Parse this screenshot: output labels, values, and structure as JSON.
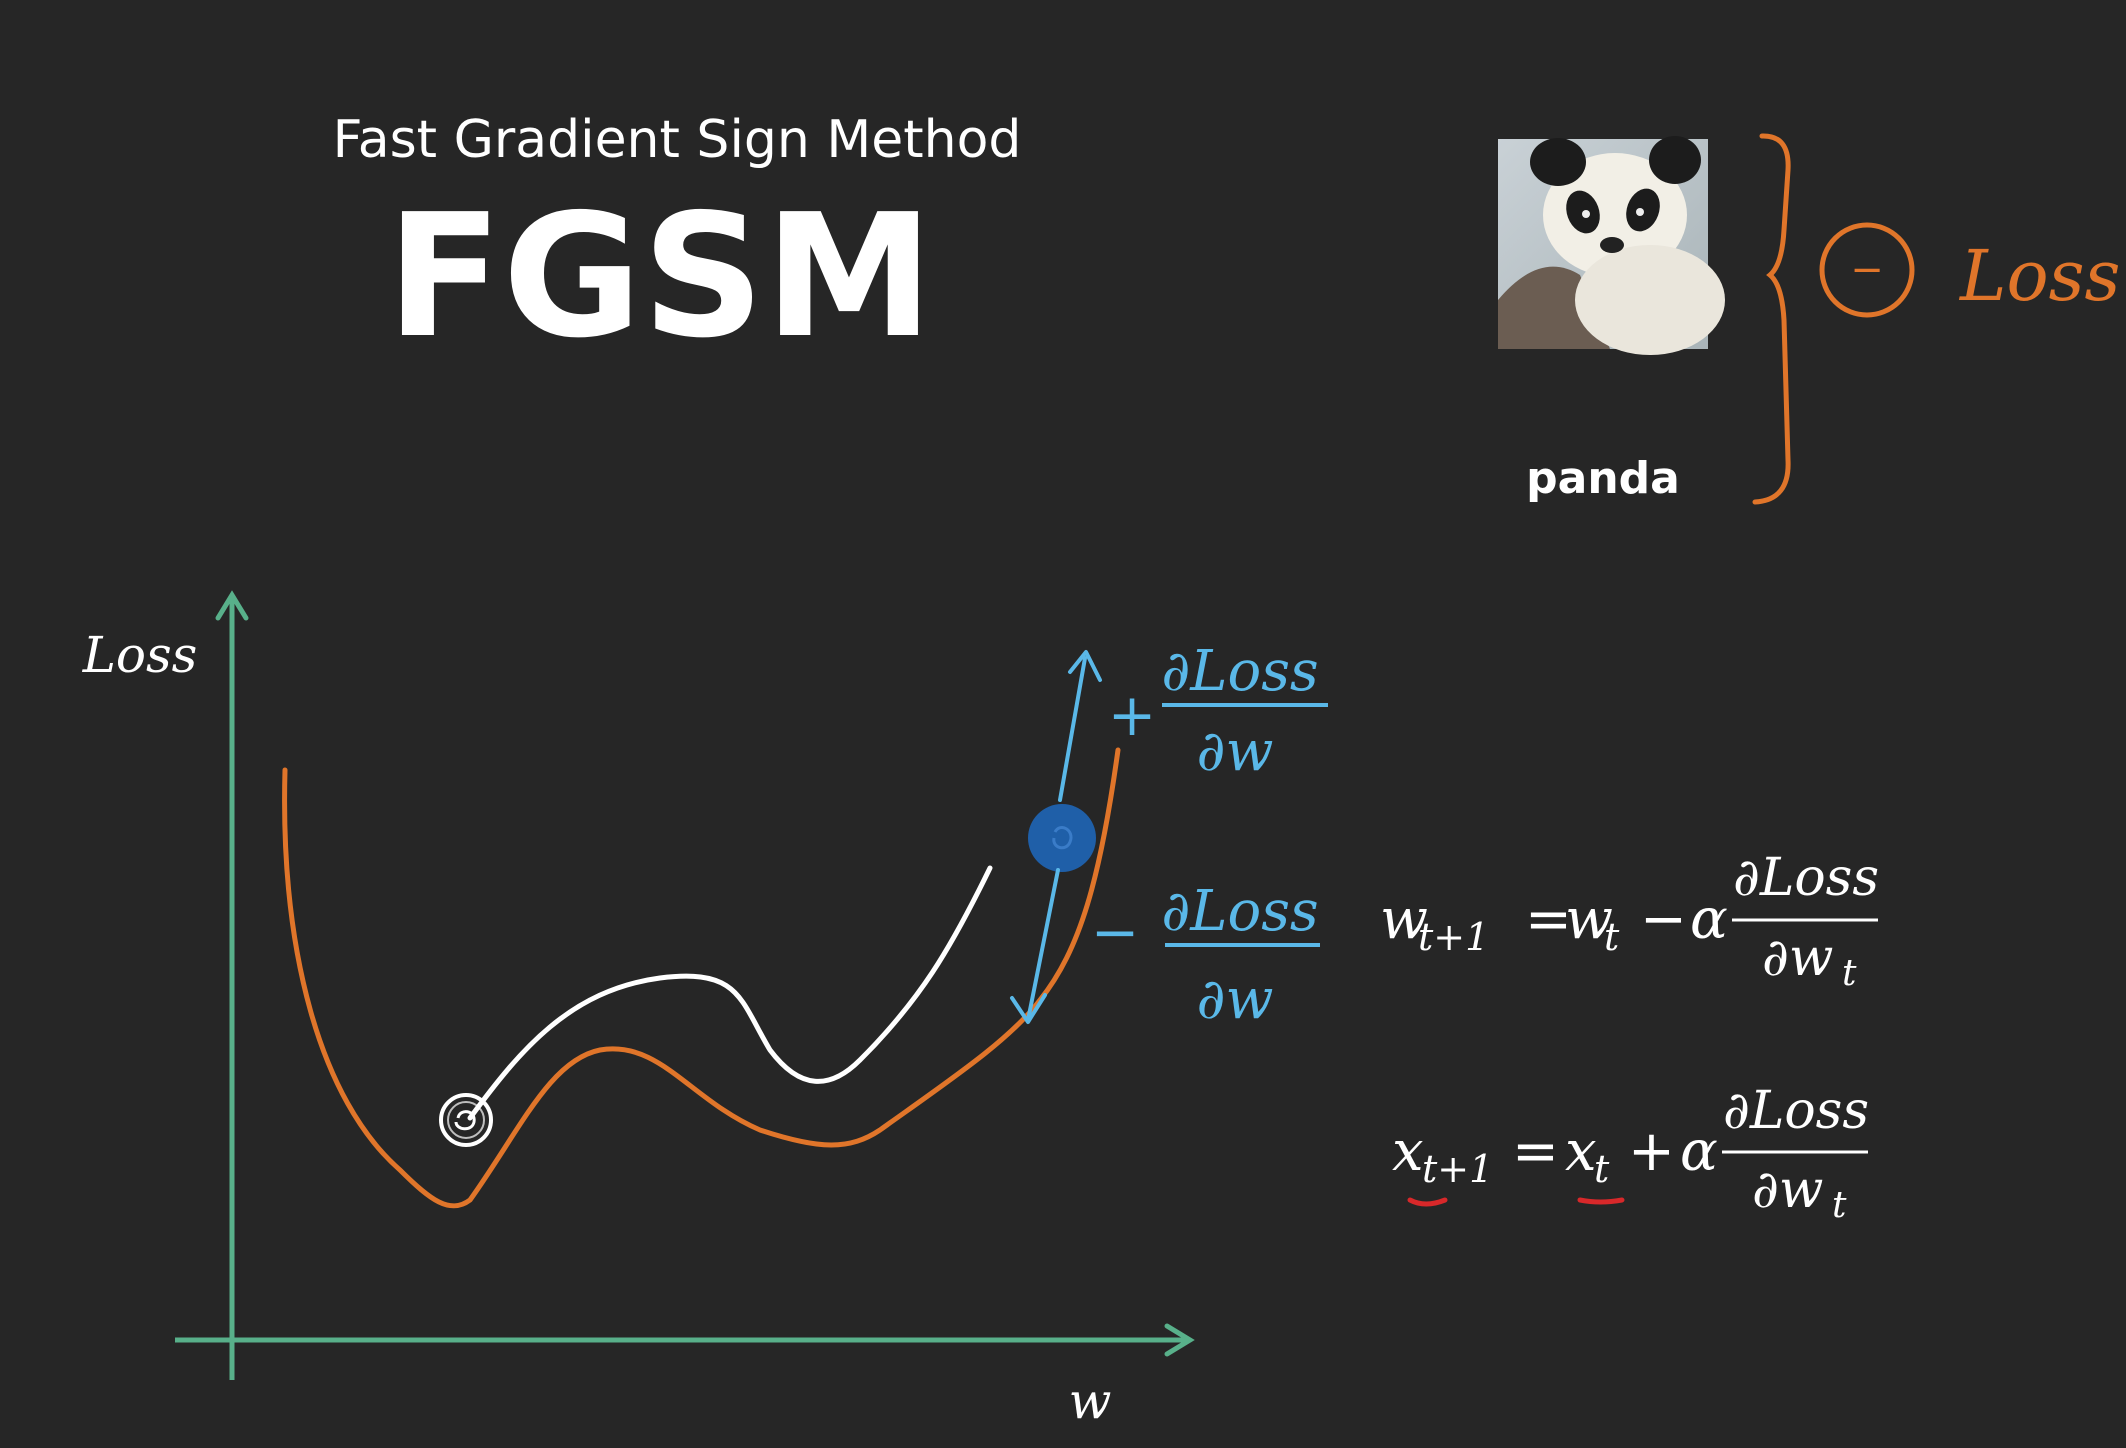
{
  "header": {
    "subtitle": "Fast Gradient Sign Method",
    "title": "FGSM"
  },
  "panda_panel": {
    "image_label": "panda",
    "minus_symbol": "−",
    "loss_annotation": "Loss"
  },
  "graph": {
    "y_axis_label": "Loss",
    "x_axis_label": "w",
    "plus_gradient": {
      "sign": "+",
      "numerator": "∂Loss",
      "denominator": "∂w"
    },
    "minus_gradient": {
      "sign": "−",
      "numerator": "∂Loss",
      "denominator": "∂w"
    }
  },
  "equations": {
    "weight_update": {
      "lhs": "w",
      "lhs_sub": "t+1",
      "eq": "=",
      "rhs_var": "w",
      "rhs_sub": "t",
      "op": "−",
      "alpha": "α",
      "numerator": "∂Loss",
      "denominator": "∂w",
      "denominator_sub": "t"
    },
    "input_update": {
      "lhs": "x",
      "lhs_sub": "t+1",
      "eq": "=",
      "rhs_var": "x",
      "rhs_sub": "t",
      "op": "+",
      "alpha": "α",
      "numerator": "∂Loss",
      "denominator": "∂w",
      "denominator_sub": "t"
    }
  },
  "colors": {
    "background": "#262626",
    "text": "#ffffff",
    "axis": "#58b08a",
    "curve_orange": "#e0752a",
    "curve_white": "#ffffff",
    "handwriting_blue": "#5ab8e8",
    "ball_blue": "#1f5fa8",
    "underline_red": "#d8282a"
  }
}
